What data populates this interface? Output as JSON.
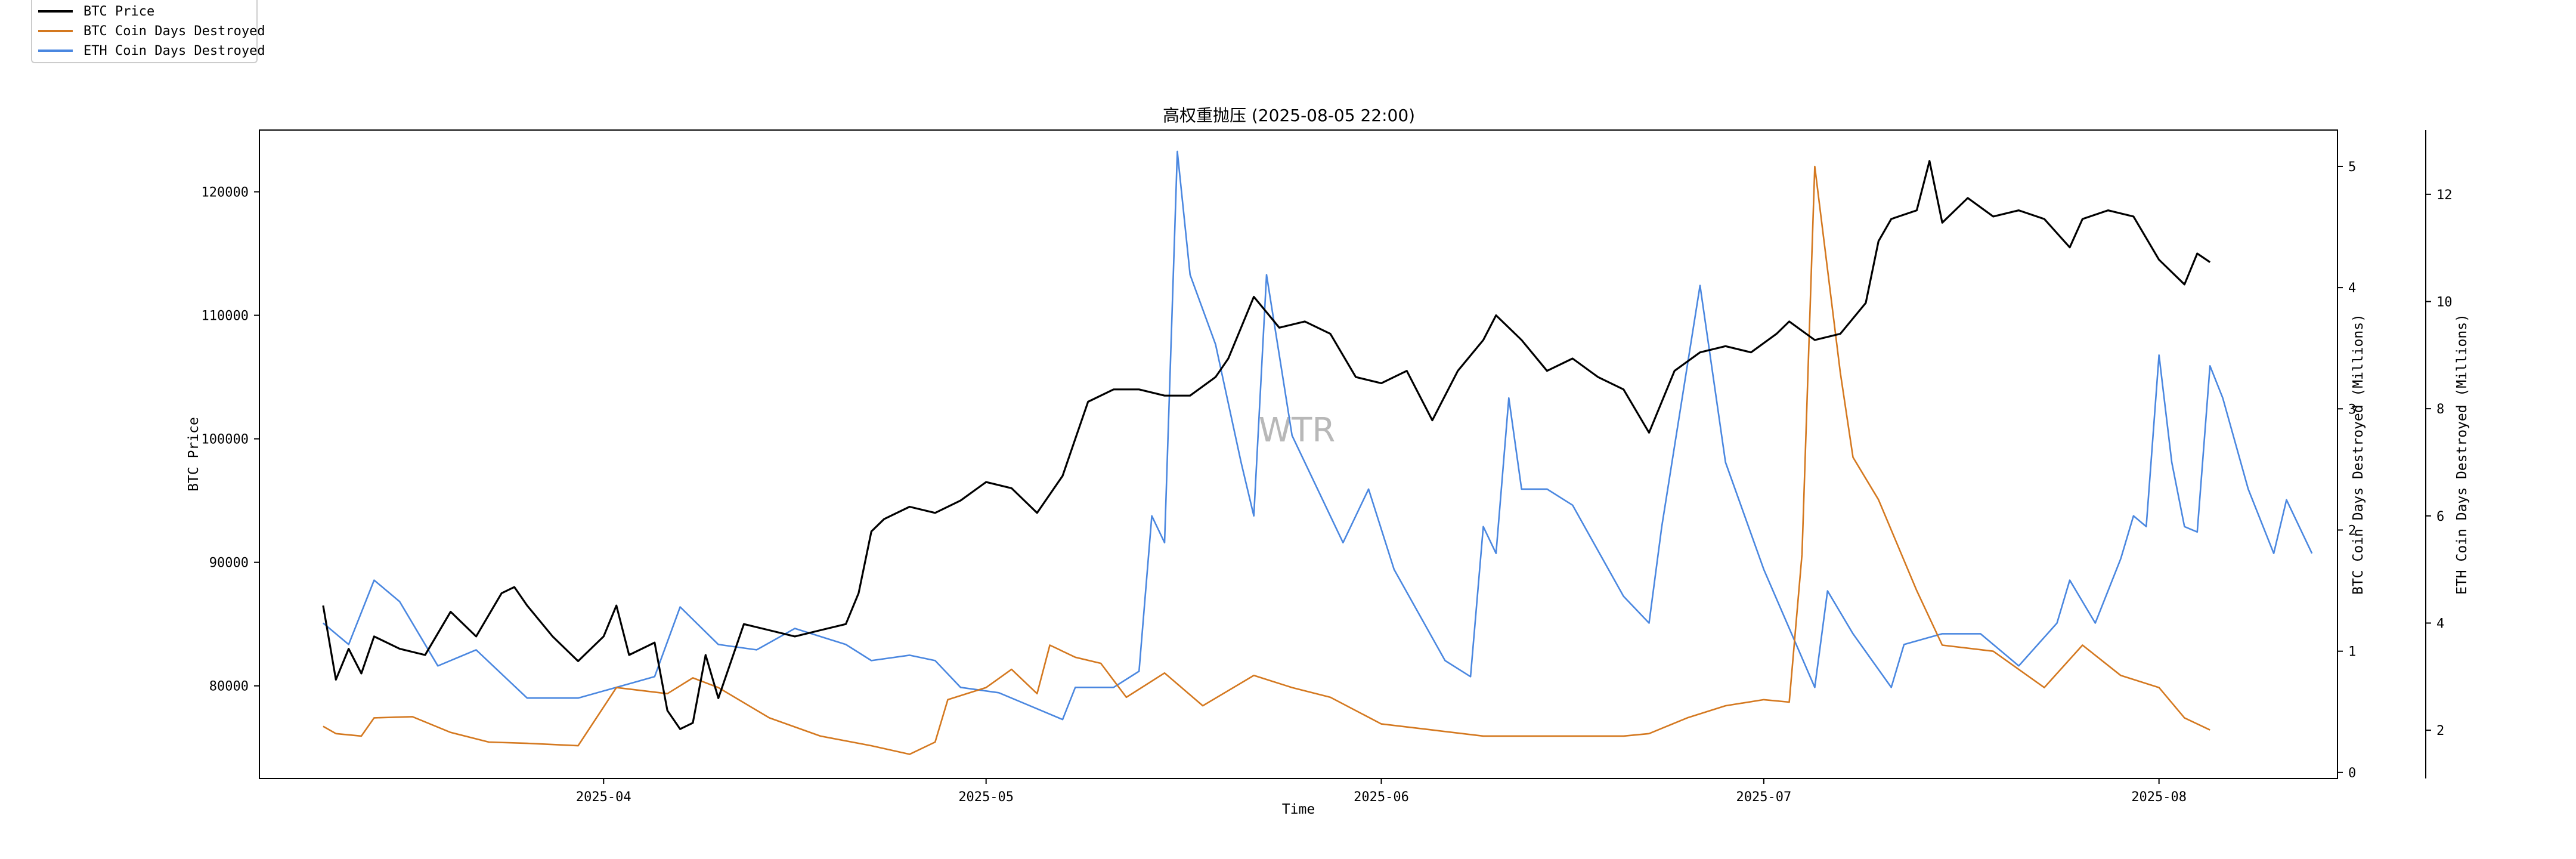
{
  "legend": {
    "items": [
      {
        "label": "BTC Price",
        "color": "#000000"
      },
      {
        "label": "BTC Coin Days Destroyed",
        "color": "#d4781f"
      },
      {
        "label": "ETH Coin Days Destroyed",
        "color": "#4a87e0"
      }
    ]
  },
  "watermark": "WTR",
  "chart_data": {
    "type": "line",
    "title": "高权重抛压 (2025-08-05 22:00)",
    "xlabel": "Time",
    "ylabel": "BTC Price",
    "y2label": "BTC Coin Days Destroyed (Millions)",
    "y3label": "ETH Coin Days Destroyed (Millions)",
    "xlim": [
      "2025-03-05",
      "2025-08-15"
    ],
    "x_ticks": [
      "2025-04",
      "2025-05",
      "2025-06",
      "2025-07",
      "2025-08"
    ],
    "x_tick_dates": [
      "2025-04-01",
      "2025-05-01",
      "2025-06-01",
      "2025-07-01",
      "2025-08-01"
    ],
    "ylim": [
      72500,
      125000
    ],
    "y_ticks": [
      80000,
      90000,
      100000,
      110000,
      120000
    ],
    "y2lim": [
      -0.05,
      5.3
    ],
    "y2_ticks": [
      0,
      1,
      2,
      3,
      4,
      5
    ],
    "y3lim": [
      1.1,
      13.2
    ],
    "y3_ticks": [
      2,
      4,
      6,
      8,
      10,
      12
    ],
    "grid": false,
    "legend_position": "top-left",
    "series": [
      {
        "name": "BTC Price",
        "axis": "left",
        "color": "#000000",
        "points": [
          [
            "2025-03-10",
            86500
          ],
          [
            "2025-03-11",
            80500
          ],
          [
            "2025-03-12",
            83000
          ],
          [
            "2025-03-13",
            81000
          ],
          [
            "2025-03-14",
            84000
          ],
          [
            "2025-03-16",
            83000
          ],
          [
            "2025-03-18",
            82500
          ],
          [
            "2025-03-20",
            86000
          ],
          [
            "2025-03-22",
            84000
          ],
          [
            "2025-03-24",
            87500
          ],
          [
            "2025-03-25",
            88000
          ],
          [
            "2025-03-26",
            86500
          ],
          [
            "2025-03-28",
            84000
          ],
          [
            "2025-03-30",
            82000
          ],
          [
            "2025-04-01",
            84000
          ],
          [
            "2025-04-02",
            86500
          ],
          [
            "2025-04-03",
            82500
          ],
          [
            "2025-04-05",
            83500
          ],
          [
            "2025-04-06",
            78000
          ],
          [
            "2025-04-07",
            76500
          ],
          [
            "2025-04-08",
            77000
          ],
          [
            "2025-04-09",
            82500
          ],
          [
            "2025-04-10",
            79000
          ],
          [
            "2025-04-12",
            85000
          ],
          [
            "2025-04-14",
            84500
          ],
          [
            "2025-04-16",
            84000
          ],
          [
            "2025-04-18",
            84500
          ],
          [
            "2025-04-20",
            85000
          ],
          [
            "2025-04-21",
            87500
          ],
          [
            "2025-04-22",
            92500
          ],
          [
            "2025-04-23",
            93500
          ],
          [
            "2025-04-25",
            94500
          ],
          [
            "2025-04-27",
            94000
          ],
          [
            "2025-04-29",
            95000
          ],
          [
            "2025-05-01",
            96500
          ],
          [
            "2025-05-03",
            96000
          ],
          [
            "2025-05-05",
            94000
          ],
          [
            "2025-05-07",
            97000
          ],
          [
            "2025-05-08",
            100000
          ],
          [
            "2025-05-09",
            103000
          ],
          [
            "2025-05-11",
            104000
          ],
          [
            "2025-05-13",
            104000
          ],
          [
            "2025-05-15",
            103500
          ],
          [
            "2025-05-17",
            103500
          ],
          [
            "2025-05-19",
            105000
          ],
          [
            "2025-05-20",
            106500
          ],
          [
            "2025-05-21",
            109000
          ],
          [
            "2025-05-22",
            111500
          ],
          [
            "2025-05-24",
            109000
          ],
          [
            "2025-05-26",
            109500
          ],
          [
            "2025-05-28",
            108500
          ],
          [
            "2025-05-30",
            105000
          ],
          [
            "2025-06-01",
            104500
          ],
          [
            "2025-06-03",
            105500
          ],
          [
            "2025-06-05",
            101500
          ],
          [
            "2025-06-07",
            105500
          ],
          [
            "2025-06-09",
            108000
          ],
          [
            "2025-06-10",
            110000
          ],
          [
            "2025-06-12",
            108000
          ],
          [
            "2025-06-14",
            105500
          ],
          [
            "2025-06-16",
            106500
          ],
          [
            "2025-06-18",
            105000
          ],
          [
            "2025-06-20",
            104000
          ],
          [
            "2025-06-22",
            100500
          ],
          [
            "2025-06-24",
            105500
          ],
          [
            "2025-06-26",
            107000
          ],
          [
            "2025-06-28",
            107500
          ],
          [
            "2025-06-30",
            107000
          ],
          [
            "2025-07-02",
            108500
          ],
          [
            "2025-07-03",
            109500
          ],
          [
            "2025-07-05",
            108000
          ],
          [
            "2025-07-07",
            108500
          ],
          [
            "2025-07-09",
            111000
          ],
          [
            "2025-07-10",
            116000
          ],
          [
            "2025-07-11",
            117800
          ],
          [
            "2025-07-13",
            118500
          ],
          [
            "2025-07-14",
            122500
          ],
          [
            "2025-07-15",
            117500
          ],
          [
            "2025-07-17",
            119500
          ],
          [
            "2025-07-19",
            118000
          ],
          [
            "2025-07-21",
            118500
          ],
          [
            "2025-07-23",
            117800
          ],
          [
            "2025-07-25",
            115500
          ],
          [
            "2025-07-26",
            117800
          ],
          [
            "2025-07-28",
            118500
          ],
          [
            "2025-07-30",
            118000
          ],
          [
            "2025-08-01",
            114500
          ],
          [
            "2025-08-03",
            112500
          ],
          [
            "2025-08-04",
            115000
          ],
          [
            "2025-08-05",
            114300
          ]
        ]
      },
      {
        "name": "BTC Coin Days Destroyed",
        "axis": "right",
        "color": "#d4781f",
        "points": [
          [
            "2025-03-10",
            0.38
          ],
          [
            "2025-03-11",
            0.32
          ],
          [
            "2025-03-13",
            0.3
          ],
          [
            "2025-03-14",
            0.45
          ],
          [
            "2025-03-17",
            0.46
          ],
          [
            "2025-03-20",
            0.33
          ],
          [
            "2025-03-23",
            0.25
          ],
          [
            "2025-03-26",
            0.24
          ],
          [
            "2025-03-30",
            0.22
          ],
          [
            "2025-04-02",
            0.7
          ],
          [
            "2025-04-06",
            0.65
          ],
          [
            "2025-04-08",
            0.78
          ],
          [
            "2025-04-10",
            0.7
          ],
          [
            "2025-04-14",
            0.45
          ],
          [
            "2025-04-18",
            0.3
          ],
          [
            "2025-04-22",
            0.22
          ],
          [
            "2025-04-25",
            0.15
          ],
          [
            "2025-04-27",
            0.25
          ],
          [
            "2025-04-28",
            0.6
          ],
          [
            "2025-05-01",
            0.7
          ],
          [
            "2025-05-03",
            0.85
          ],
          [
            "2025-05-05",
            0.65
          ],
          [
            "2025-05-06",
            1.05
          ],
          [
            "2025-05-08",
            0.95
          ],
          [
            "2025-05-10",
            0.9
          ],
          [
            "2025-05-12",
            0.62
          ],
          [
            "2025-05-15",
            0.82
          ],
          [
            "2025-05-18",
            0.55
          ],
          [
            "2025-05-22",
            0.8
          ],
          [
            "2025-05-25",
            0.7
          ],
          [
            "2025-05-28",
            0.62
          ],
          [
            "2025-06-01",
            0.4
          ],
          [
            "2025-06-05",
            0.35
          ],
          [
            "2025-06-09",
            0.3
          ],
          [
            "2025-06-12",
            0.3
          ],
          [
            "2025-06-16",
            0.3
          ],
          [
            "2025-06-20",
            0.3
          ],
          [
            "2025-06-22",
            0.32
          ],
          [
            "2025-06-25",
            0.45
          ],
          [
            "2025-06-28",
            0.55
          ],
          [
            "2025-07-01",
            0.6
          ],
          [
            "2025-07-03",
            0.58
          ],
          [
            "2025-07-04",
            1.8
          ],
          [
            "2025-07-05",
            5.0
          ],
          [
            "2025-07-07",
            3.3
          ],
          [
            "2025-07-08",
            2.6
          ],
          [
            "2025-07-10",
            2.25
          ],
          [
            "2025-07-13",
            1.5
          ],
          [
            "2025-07-15",
            1.05
          ],
          [
            "2025-07-19",
            1.0
          ],
          [
            "2025-07-23",
            0.7
          ],
          [
            "2025-07-26",
            1.05
          ],
          [
            "2025-07-29",
            0.8
          ],
          [
            "2025-08-01",
            0.7
          ],
          [
            "2025-08-03",
            0.45
          ],
          [
            "2025-08-05",
            0.35
          ]
        ]
      },
      {
        "name": "ETH Coin Days Destroyed",
        "axis": "right2",
        "color": "#4a87e0",
        "points": [
          [
            "2025-03-10",
            4.0
          ],
          [
            "2025-03-12",
            3.6
          ],
          [
            "2025-03-14",
            4.8
          ],
          [
            "2025-03-16",
            4.4
          ],
          [
            "2025-03-19",
            3.2
          ],
          [
            "2025-03-22",
            3.5
          ],
          [
            "2025-03-26",
            2.6
          ],
          [
            "2025-03-30",
            2.6
          ],
          [
            "2025-04-02",
            2.8
          ],
          [
            "2025-04-05",
            3.0
          ],
          [
            "2025-04-07",
            4.3
          ],
          [
            "2025-04-10",
            3.6
          ],
          [
            "2025-04-13",
            3.5
          ],
          [
            "2025-04-16",
            3.9
          ],
          [
            "2025-04-20",
            3.6
          ],
          [
            "2025-04-22",
            3.3
          ],
          [
            "2025-04-25",
            3.4
          ],
          [
            "2025-04-27",
            3.3
          ],
          [
            "2025-04-29",
            2.8
          ],
          [
            "2025-05-02",
            2.7
          ],
          [
            "2025-05-05",
            2.4
          ],
          [
            "2025-05-07",
            2.2
          ],
          [
            "2025-05-08",
            2.8
          ],
          [
            "2025-05-11",
            2.8
          ],
          [
            "2025-05-13",
            3.1
          ],
          [
            "2025-05-14",
            6.0
          ],
          [
            "2025-05-15",
            5.5
          ],
          [
            "2025-05-16",
            12.8
          ],
          [
            "2025-05-17",
            10.5
          ],
          [
            "2025-05-19",
            9.2
          ],
          [
            "2025-05-21",
            7.0
          ],
          [
            "2025-05-22",
            6.0
          ],
          [
            "2025-05-23",
            10.5
          ],
          [
            "2025-05-25",
            7.5
          ],
          [
            "2025-05-29",
            5.5
          ],
          [
            "2025-05-31",
            6.5
          ],
          [
            "2025-06-02",
            5.0
          ],
          [
            "2025-06-06",
            3.3
          ],
          [
            "2025-06-08",
            3.0
          ],
          [
            "2025-06-09",
            5.8
          ],
          [
            "2025-06-10",
            5.3
          ],
          [
            "2025-06-11",
            8.2
          ],
          [
            "2025-06-12",
            6.5
          ],
          [
            "2025-06-14",
            6.5
          ],
          [
            "2025-06-16",
            6.2
          ],
          [
            "2025-06-20",
            4.5
          ],
          [
            "2025-06-22",
            4.0
          ],
          [
            "2025-06-23",
            5.8
          ],
          [
            "2025-06-26",
            10.3
          ],
          [
            "2025-06-28",
            7.0
          ],
          [
            "2025-07-01",
            5.0
          ],
          [
            "2025-07-05",
            2.8
          ],
          [
            "2025-07-06",
            4.6
          ],
          [
            "2025-07-08",
            3.8
          ],
          [
            "2025-07-11",
            2.8
          ],
          [
            "2025-07-12",
            3.6
          ],
          [
            "2025-07-15",
            3.8
          ],
          [
            "2025-07-18",
            3.8
          ],
          [
            "2025-07-21",
            3.2
          ],
          [
            "2025-07-24",
            4.0
          ],
          [
            "2025-07-25",
            4.8
          ],
          [
            "2025-07-27",
            4.0
          ],
          [
            "2025-07-29",
            5.2
          ],
          [
            "2025-07-30",
            6.0
          ],
          [
            "2025-07-31",
            5.8
          ],
          [
            "2025-08-01",
            9.0
          ],
          [
            "2025-08-02",
            7.0
          ],
          [
            "2025-08-03",
            5.8
          ],
          [
            "2025-08-04",
            5.7
          ],
          [
            "2025-08-05",
            8.8
          ],
          [
            "2025-08-06",
            8.2
          ],
          [
            "2025-08-08",
            6.5
          ],
          [
            "2025-08-10",
            5.3
          ],
          [
            "2025-08-11",
            6.3
          ],
          [
            "2025-08-13",
            5.3
          ]
        ]
      }
    ]
  }
}
